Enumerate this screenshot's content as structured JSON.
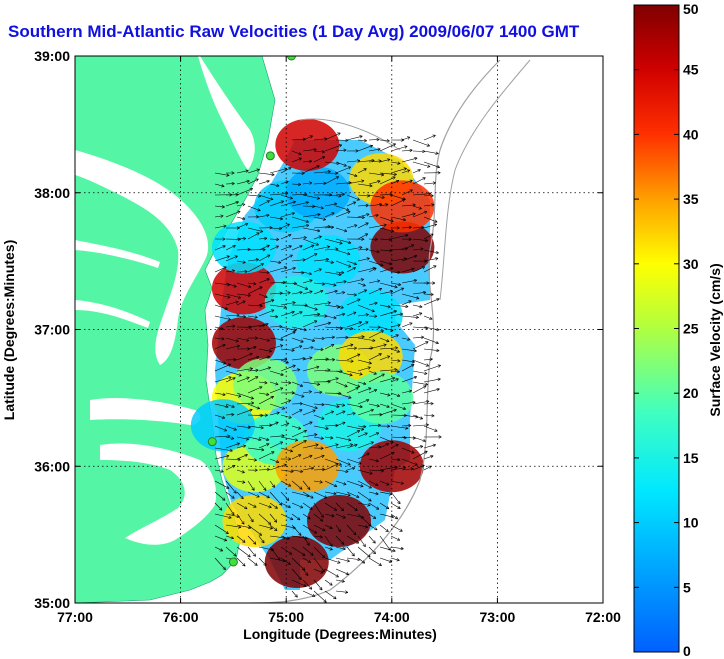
{
  "title": "Southern Mid-Atlantic Raw Velocities (1 Day Avg) 2009/06/07 1400 GMT",
  "chart_data": {
    "type": "heatmap",
    "title": "Southern Mid-Atlantic Raw Velocities (1 Day Avg) 2009/06/07 1400 GMT",
    "xlabel": "Longitude (Degrees:Minutes)",
    "ylabel": "Latitude (Degrees:Minutes)",
    "colorbar_label": "Surface Velocity (cm/s)",
    "xlim": [
      -77,
      -72
    ],
    "ylim": [
      35,
      39
    ],
    "clim": [
      0,
      50
    ],
    "x_ticks": [
      -77,
      -76,
      -75,
      -74,
      -73,
      -72
    ],
    "x_tick_labels": [
      "77:00",
      "76:00",
      "75:00",
      "74:00",
      "73:00",
      "72:00"
    ],
    "y_ticks": [
      35,
      36,
      37,
      38,
      39
    ],
    "y_tick_labels": [
      "35:00",
      "36:00",
      "37:00",
      "38:00",
      "39:00"
    ],
    "colorbar_ticks": [
      0,
      5,
      10,
      15,
      20,
      25,
      30,
      35,
      40,
      45,
      50
    ],
    "colorbar_tick_labels": [
      "0",
      "5",
      "10",
      "15",
      "20",
      "25",
      "30",
      "35",
      "40",
      "45",
      "50"
    ],
    "colormap": "jet",
    "grid": true,
    "land_color": "#54f5a5",
    "stations": [
      {
        "lon": -74.95,
        "lat": 39.0
      },
      {
        "lon": -75.15,
        "lat": 38.27
      },
      {
        "lon": -75.7,
        "lat": 36.18
      },
      {
        "lon": -75.5,
        "lat": 35.3
      }
    ],
    "velocity_samples": [
      {
        "lon": -75.4,
        "lat": 37.3,
        "speed": 45
      },
      {
        "lon": -75.4,
        "lat": 36.9,
        "speed": 48
      },
      {
        "lon": -75.4,
        "lat": 36.5,
        "speed": 30
      },
      {
        "lon": -75.3,
        "lat": 36.0,
        "speed": 28
      },
      {
        "lon": -75.4,
        "lat": 37.6,
        "speed": 12
      },
      {
        "lon": -75.0,
        "lat": 37.9,
        "speed": 10
      },
      {
        "lon": -74.7,
        "lat": 38.0,
        "speed": 7
      },
      {
        "lon": -74.6,
        "lat": 37.5,
        "speed": 12
      },
      {
        "lon": -74.9,
        "lat": 37.2,
        "speed": 15
      },
      {
        "lon": -74.2,
        "lat": 37.1,
        "speed": 12
      },
      {
        "lon": -75.2,
        "lat": 36.6,
        "speed": 22
      },
      {
        "lon": -74.5,
        "lat": 36.7,
        "speed": 22
      },
      {
        "lon": -75.1,
        "lat": 36.2,
        "speed": 18
      },
      {
        "lon": -74.4,
        "lat": 36.3,
        "speed": 15
      },
      {
        "lon": -74.8,
        "lat": 36.0,
        "speed": 35
      },
      {
        "lon": -74.0,
        "lat": 36.0,
        "speed": 48
      },
      {
        "lon": -74.5,
        "lat": 35.6,
        "speed": 50
      },
      {
        "lon": -74.9,
        "lat": 35.3,
        "speed": 50
      },
      {
        "lon": -74.8,
        "lat": 38.35,
        "speed": 45
      },
      {
        "lon": -74.1,
        "lat": 38.1,
        "speed": 32
      },
      {
        "lon": -73.9,
        "lat": 37.6,
        "speed": 50
      },
      {
        "lon": -73.9,
        "lat": 37.9,
        "speed": 40
      },
      {
        "lon": -74.2,
        "lat": 36.8,
        "speed": 32
      },
      {
        "lon": -74.1,
        "lat": 36.5,
        "speed": 20
      },
      {
        "lon": -75.3,
        "lat": 35.6,
        "speed": 32
      },
      {
        "lon": -75.6,
        "lat": 36.3,
        "speed": 10
      }
    ]
  }
}
